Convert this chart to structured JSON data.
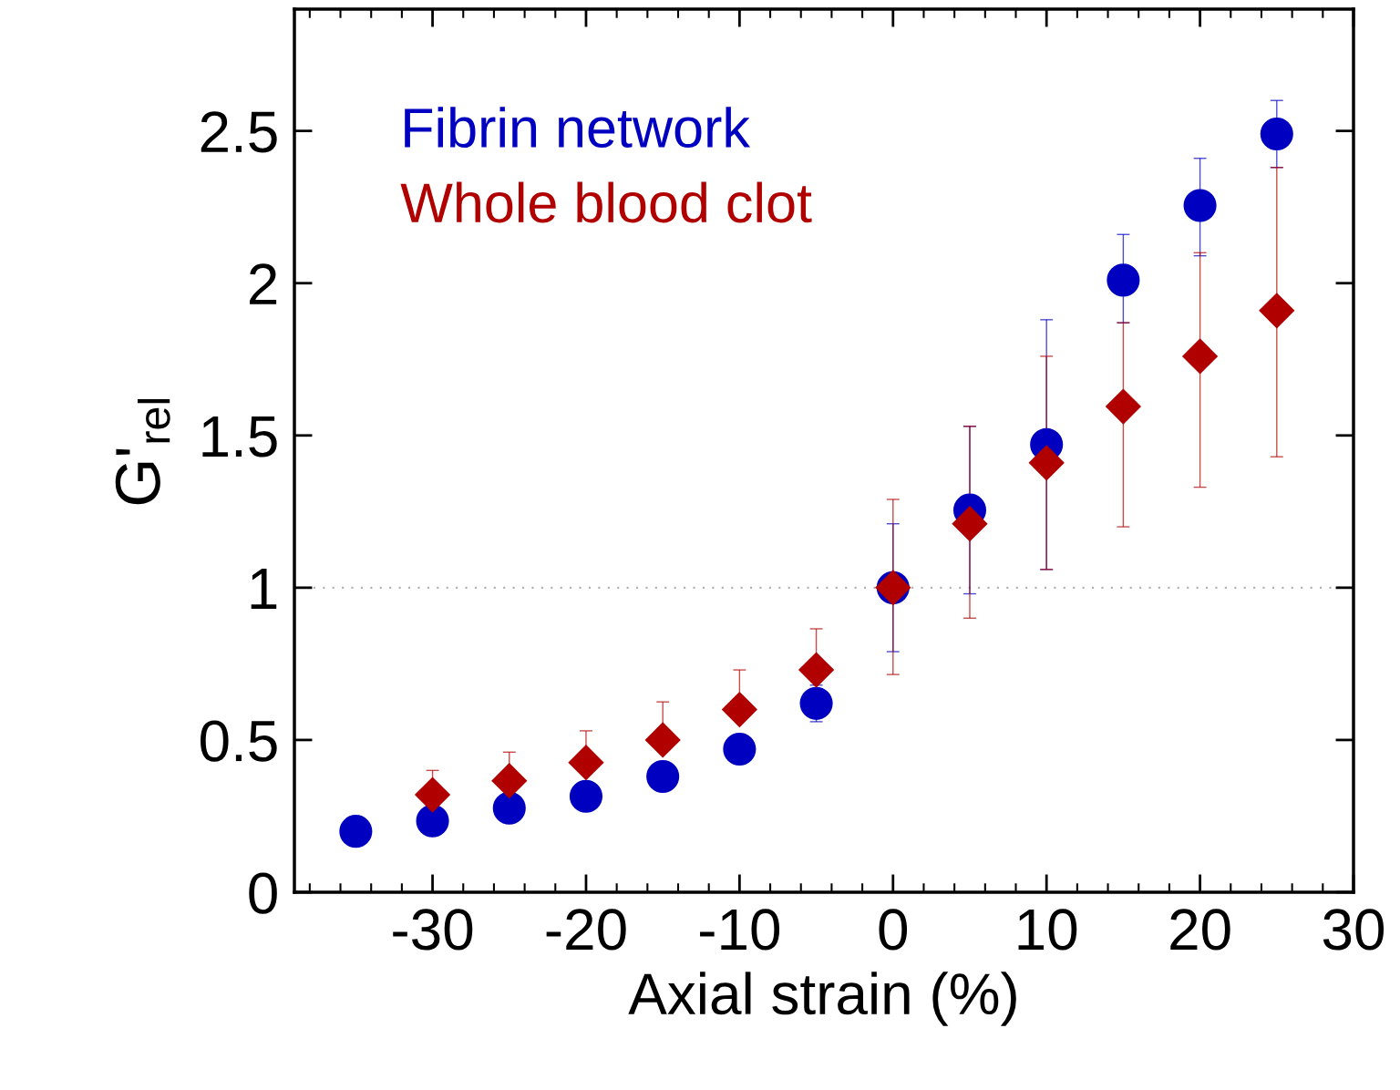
{
  "chart_data": {
    "type": "scatter",
    "xlabel": "Axial strain (%)",
    "ylabel": "G'$_{rel}$",
    "x": [
      -35,
      -30,
      -25,
      -20,
      -15,
      -10,
      -5,
      0,
      5,
      10,
      15,
      20,
      25
    ],
    "series": [
      {
        "name": "Fibrin network",
        "color": "#0000c0",
        "marker": "circle",
        "values": [
          0.2,
          0.234,
          0.276,
          0.315,
          0.38,
          0.47,
          0.62,
          1.0,
          1.255,
          1.47,
          2.01,
          2.255,
          2.49
        ],
        "errors": [
          null,
          null,
          null,
          null,
          null,
          null,
          [
            0.56,
            0.68
          ],
          [
            0.79,
            1.21
          ],
          [
            0.98,
            1.53
          ],
          [
            1.06,
            1.88
          ],
          [
            1.87,
            2.16
          ],
          [
            2.09,
            2.41
          ],
          [
            2.38,
            2.6
          ]
        ]
      },
      {
        "name": "Whole blood clot",
        "color": "#b00000",
        "marker": "diamond",
        "x": [
          -30,
          -25,
          -20,
          -15,
          -10,
          -5,
          0,
          5,
          10,
          15,
          20,
          25
        ],
        "values": [
          0.32,
          0.366,
          0.426,
          0.5,
          0.6,
          0.73,
          1.0,
          1.21,
          1.41,
          1.595,
          1.76,
          1.91
        ],
        "errors": [
          [
            0.32,
            0.4
          ],
          [
            0.366,
            0.46
          ],
          [
            0.426,
            0.53
          ],
          [
            0.5,
            0.625
          ],
          [
            0.6,
            0.73
          ],
          [
            0.73,
            0.865
          ],
          [
            0.715,
            1.29
          ],
          [
            0.9,
            1.53
          ],
          [
            1.06,
            1.76
          ],
          [
            1.2,
            1.87
          ],
          [
            1.33,
            2.1
          ],
          [
            1.43,
            2.38
          ]
        ]
      }
    ],
    "xlim": [
      -39,
      30
    ],
    "xticks": [
      -30,
      -20,
      -10,
      0,
      10,
      20,
      30
    ],
    "ylim": [
      0,
      2.9
    ],
    "yticks": [
      0,
      {
        "value": 0.5,
        "label": "0.5"
      },
      1,
      {
        "value": 1.5,
        "label": "1.5"
      },
      2,
      {
        "value": 2.5,
        "label": "2.5"
      }
    ],
    "ref_lines": [
      {
        "axis": "y",
        "value": 1,
        "color": "#b0b0b0",
        "line_style": "dotted"
      }
    ],
    "legend": "top left",
    "grid": false
  }
}
